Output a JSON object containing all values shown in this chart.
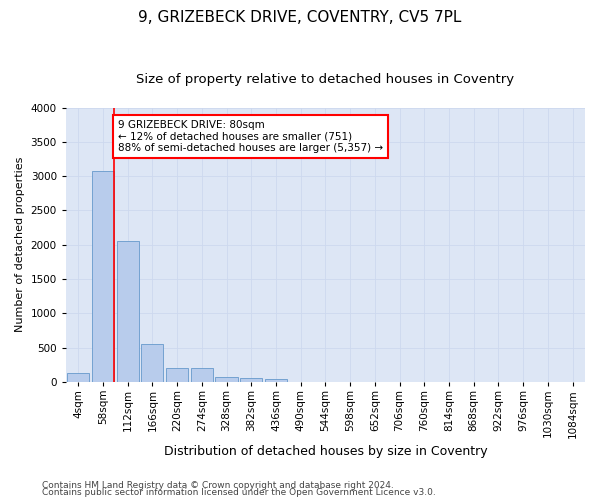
{
  "title": "9, GRIZEBECK DRIVE, COVENTRY, CV5 7PL",
  "subtitle": "Size of property relative to detached houses in Coventry",
  "xlabel": "Distribution of detached houses by size in Coventry",
  "ylabel": "Number of detached properties",
  "footer_line1": "Contains HM Land Registry data © Crown copyright and database right 2024.",
  "footer_line2": "Contains public sector information licensed under the Open Government Licence v3.0.",
  "bar_labels": [
    "4sqm",
    "58sqm",
    "112sqm",
    "166sqm",
    "220sqm",
    "274sqm",
    "328sqm",
    "382sqm",
    "436sqm",
    "490sqm",
    "544sqm",
    "598sqm",
    "652sqm",
    "706sqm",
    "760sqm",
    "814sqm",
    "868sqm",
    "922sqm",
    "976sqm",
    "1030sqm",
    "1084sqm"
  ],
  "bar_values": [
    130,
    3080,
    2060,
    550,
    200,
    200,
    75,
    60,
    50,
    0,
    0,
    0,
    0,
    0,
    0,
    0,
    0,
    0,
    0,
    0,
    0
  ],
  "bar_color": "#b8ccec",
  "bar_edge_color": "#6699cc",
  "annotation_line1": "9 GRIZEBECK DRIVE: 80sqm",
  "annotation_line2": "← 12% of detached houses are smaller (751)",
  "annotation_line3": "88% of semi-detached houses are larger (5,357) →",
  "annotation_box_color": "red",
  "vline_color": "red",
  "vline_x": 1.43,
  "ylim": [
    0,
    4000
  ],
  "yticks": [
    0,
    500,
    1000,
    1500,
    2000,
    2500,
    3000,
    3500,
    4000
  ],
  "grid_color": "#cdd8ee",
  "background_color": "#dde6f5",
  "title_fontsize": 11,
  "subtitle_fontsize": 9.5,
  "xlabel_fontsize": 9,
  "ylabel_fontsize": 8,
  "tick_fontsize": 7.5,
  "annotation_fontsize": 7.5,
  "footer_fontsize": 6.5
}
